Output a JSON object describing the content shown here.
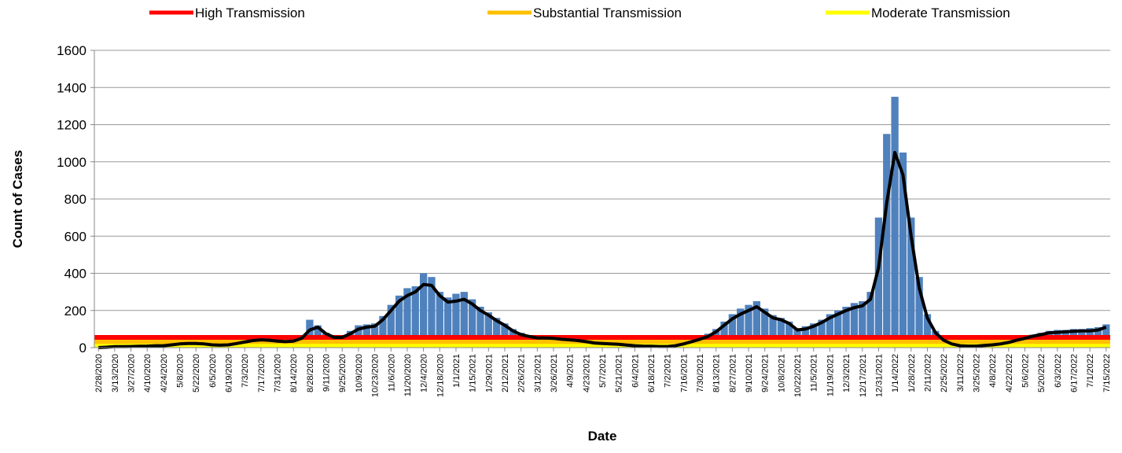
{
  "chart_data": {
    "type": "bar-line",
    "xlabel": "Date",
    "ylabel": "Count of Cases",
    "categories": [
      "2/28/2020",
      null,
      "3/13/2020",
      null,
      "3/27/2020",
      null,
      "4/10/2020",
      null,
      "4/24/2020",
      null,
      "5/8/2020",
      null,
      "5/22/2020",
      null,
      "6/5/2020",
      null,
      "6/19/2020",
      null,
      "7/3/2020",
      null,
      "7/17/2020",
      null,
      "7/31/2020",
      null,
      "8/14/2020",
      null,
      "8/28/2020",
      null,
      "9/11/2020",
      null,
      "9/25/2020",
      null,
      "10/9/2020",
      null,
      "10/23/2020",
      null,
      "11/6/2020",
      null,
      "11/20/2020",
      null,
      "12/4/2020",
      null,
      "12/18/2020",
      null,
      "1/1/2021",
      null,
      "1/15/2021",
      null,
      "1/29/2021",
      null,
      "2/12/2021",
      null,
      "2/26/2021",
      null,
      "3/12/2021",
      null,
      "3/26/2021",
      null,
      "4/9/2021",
      null,
      "4/23/2021",
      null,
      "5/7/2021",
      null,
      "5/21/2021",
      null,
      "6/4/2021",
      null,
      "6/18/2021",
      null,
      "7/2/2021",
      null,
      "7/16/2021",
      null,
      "7/30/2021",
      null,
      "8/13/2021",
      null,
      "8/27/2021",
      null,
      "9/10/2021",
      null,
      "9/24/2021",
      null,
      "10/8/2021",
      null,
      "10/22/2021",
      null,
      "11/5/2021",
      null,
      "11/19/2021",
      null,
      "12/3/2021",
      null,
      "12/17/2021",
      null,
      "12/31/2021",
      null,
      "1/14/2022",
      null,
      "1/28/2022",
      null,
      "2/11/2022",
      null,
      "2/25/2022",
      null,
      "3/11/2022",
      null,
      "3/25/2022",
      null,
      "4/8/2022",
      null,
      "4/22/2022",
      null,
      "5/6/2022",
      null,
      "5/20/2022",
      null,
      "6/3/2022",
      null,
      "6/17/2022",
      null,
      "7/1/2022",
      null,
      "7/15/2022"
    ],
    "bars": {
      "color": "#4f81bd",
      "values": [
        0,
        3,
        5,
        6,
        7,
        8,
        10,
        12,
        15,
        18,
        22,
        25,
        24,
        22,
        18,
        15,
        17,
        25,
        35,
        42,
        45,
        44,
        38,
        35,
        40,
        60,
        150,
        120,
        80,
        60,
        65,
        90,
        120,
        125,
        130,
        170,
        230,
        280,
        320,
        330,
        400,
        380,
        300,
        270,
        290,
        300,
        260,
        220,
        190,
        160,
        130,
        100,
        80,
        65,
        58,
        56,
        55,
        50,
        46,
        40,
        35,
        28,
        25,
        22,
        20,
        16,
        12,
        10,
        8,
        8,
        8,
        12,
        25,
        40,
        55,
        75,
        100,
        140,
        180,
        210,
        230,
        250,
        210,
        175,
        160,
        140,
        105,
        115,
        130,
        150,
        180,
        200,
        220,
        240,
        250,
        300,
        700,
        1150,
        1350,
        1050,
        700,
        380,
        180,
        90,
        45,
        22,
        12,
        10,
        10,
        14,
        18,
        22,
        30,
        45,
        55,
        70,
        80,
        90,
        95,
        95,
        100,
        100,
        105,
        110,
        125
      ]
    },
    "line": {
      "color": "#000000",
      "values": [
        0,
        2,
        5,
        5,
        6,
        7,
        8,
        10,
        10,
        15,
        20,
        22,
        22,
        20,
        15,
        13,
        15,
        22,
        30,
        38,
        42,
        40,
        35,
        32,
        35,
        50,
        95,
        110,
        75,
        55,
        55,
        75,
        100,
        110,
        115,
        150,
        200,
        250,
        280,
        300,
        340,
        335,
        280,
        245,
        250,
        260,
        235,
        200,
        175,
        145,
        120,
        90,
        70,
        60,
        52,
        52,
        50,
        45,
        42,
        38,
        32,
        25,
        22,
        20,
        18,
        14,
        10,
        8,
        7,
        6,
        6,
        10,
        20,
        32,
        45,
        60,
        85,
        120,
        155,
        180,
        200,
        220,
        190,
        160,
        150,
        130,
        95,
        100,
        115,
        135,
        160,
        180,
        200,
        215,
        225,
        260,
        430,
        780,
        1050,
        930,
        600,
        320,
        160,
        80,
        40,
        20,
        10,
        8,
        8,
        12,
        15,
        20,
        28,
        40,
        50,
        62,
        70,
        80,
        82,
        85,
        88,
        90,
        90,
        95,
        110
      ]
    },
    "thresholds": [
      {
        "name": "High Transmission",
        "color": "#ff0000",
        "value": 55
      },
      {
        "name": "Substantial Transmission",
        "color": "#ffc000",
        "value": 33
      },
      {
        "name": "Moderate Transmission",
        "color": "#ffff00",
        "value": 15
      }
    ],
    "ylim": [
      0,
      1600
    ],
    "yticks": [
      0,
      200,
      400,
      600,
      800,
      1000,
      1200,
      1400,
      1600
    ],
    "grid": true,
    "legend": "top"
  }
}
